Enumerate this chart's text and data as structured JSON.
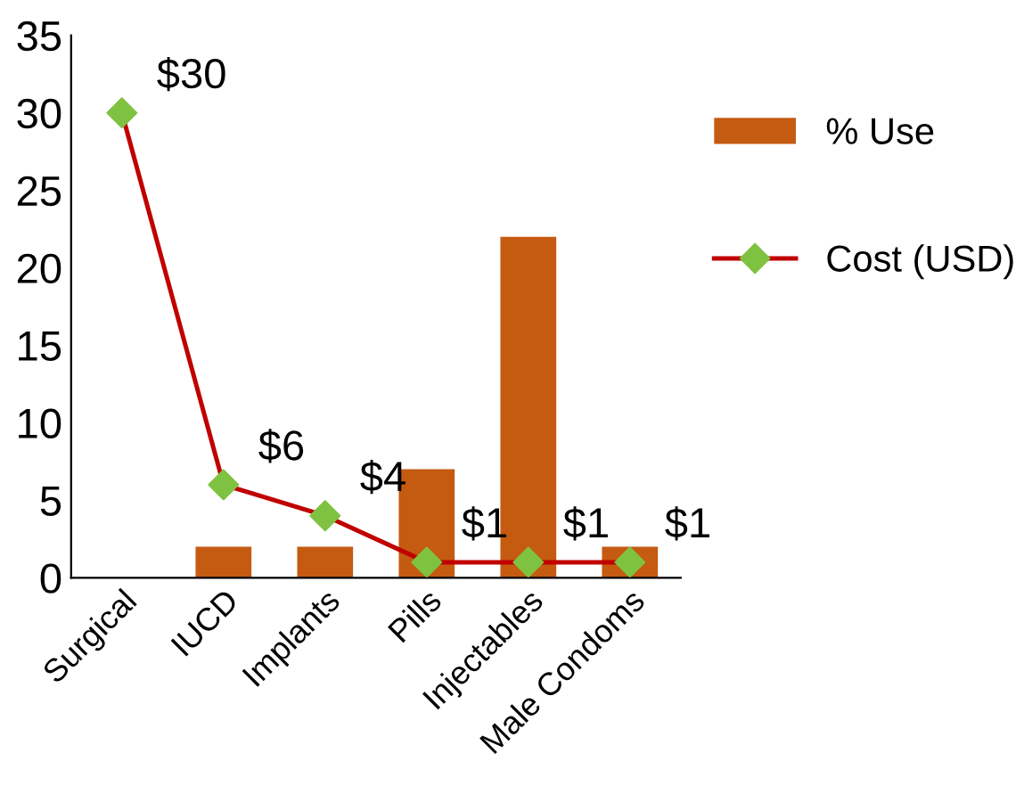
{
  "chart_data": {
    "type": "bar",
    "categories": [
      "Surgical",
      "IUCD",
      "Implants",
      "Pills",
      "Injectables",
      "Male Condoms"
    ],
    "series": [
      {
        "name": "% Use",
        "color": "#c55a11",
        "values": [
          0,
          2,
          2,
          7,
          22,
          2
        ]
      },
      {
        "name": "Cost (USD)",
        "type": "line",
        "color": "#c00000",
        "marker": "diamond",
        "colors": [
          "#7fc241",
          "#7fc241",
          "#7fc241",
          "#7fc241",
          "#7fc241",
          "#7fc241"
        ],
        "values": [
          30,
          6,
          4,
          1,
          1,
          1
        ],
        "value_labels": [
          "$30",
          "$6",
          "$4",
          "$1",
          "$1",
          "$1"
        ]
      }
    ],
    "ylim": [
      0,
      35
    ],
    "yticks": [
      0,
      5,
      10,
      15,
      20,
      25,
      30,
      35
    ],
    "grid": false,
    "legend": "right"
  }
}
